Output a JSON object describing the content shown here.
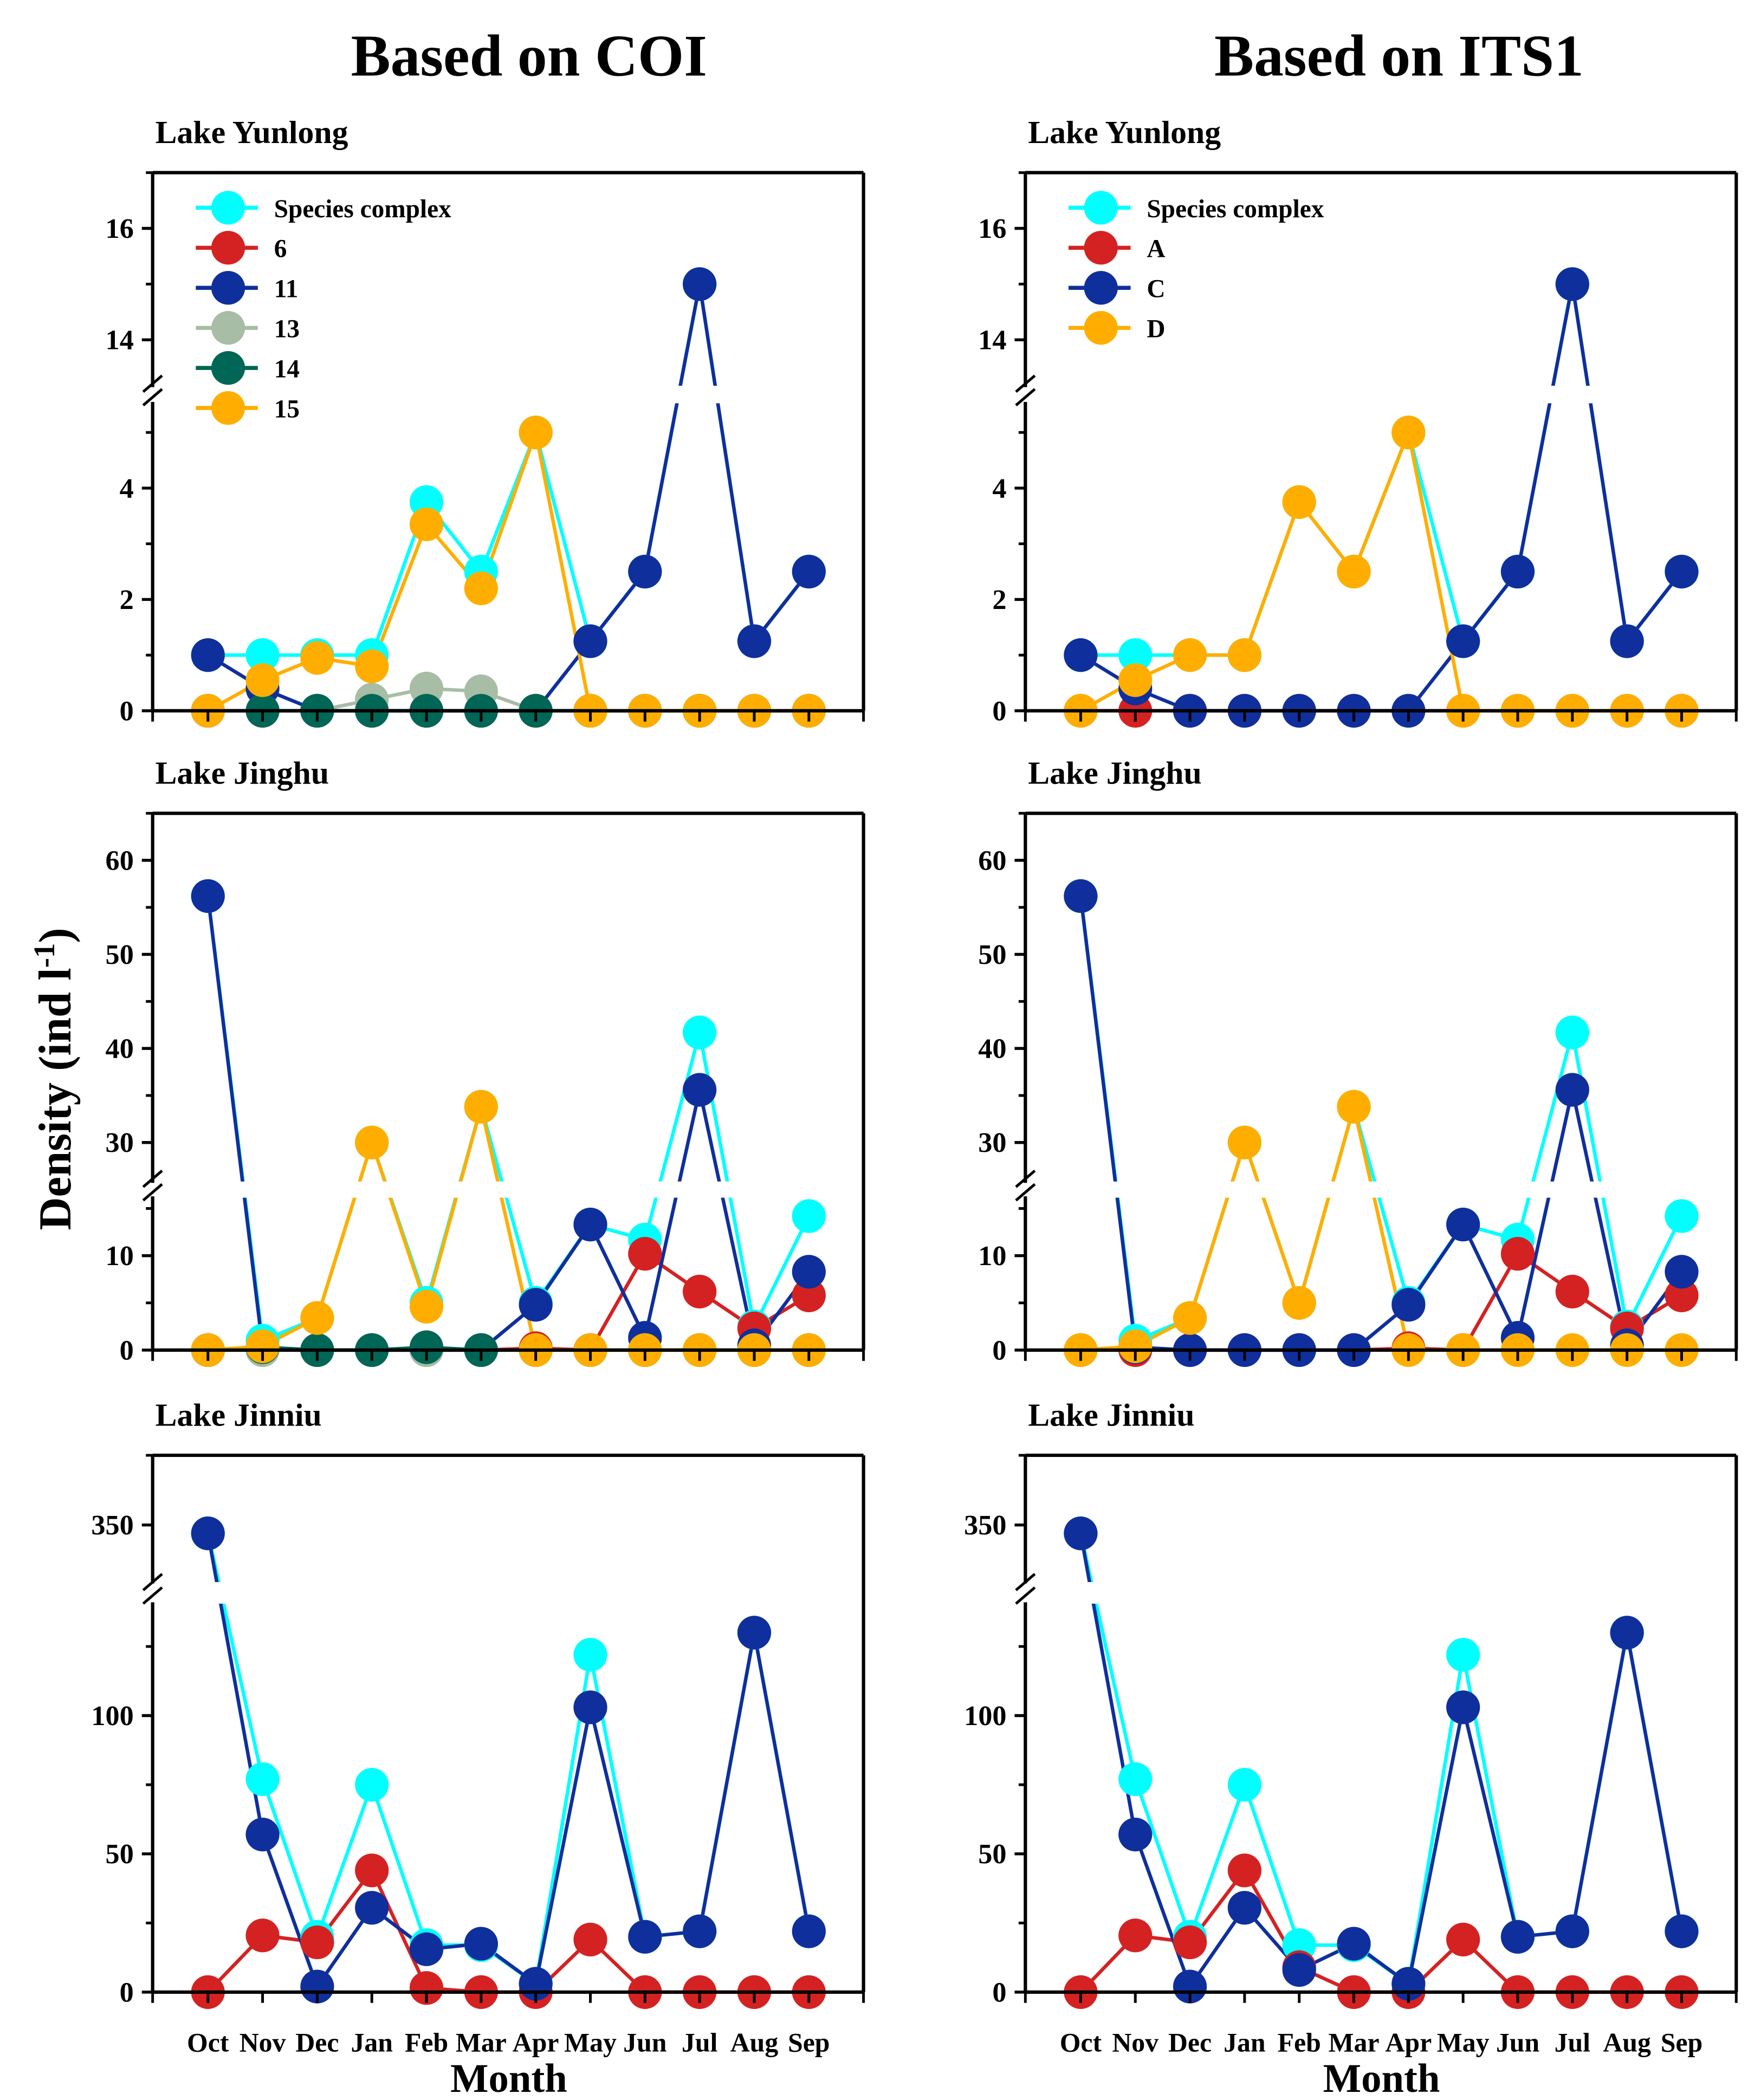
{
  "chart_data": {
    "type": "line",
    "categories": [
      "Oct",
      "Nov",
      "Dec",
      "Jan",
      "Feb",
      "Mar",
      "Apr",
      "May",
      "Jun",
      "Jul",
      "Aug",
      "Sep"
    ],
    "xlabel": "Month",
    "ylabel": "Density (ind l",
    "ylabel_sup": "-1",
    "ylabel_close": ")",
    "columns": [
      {
        "title": "Based on COI",
        "legend": [
          "Species complex",
          "6",
          "11",
          "13",
          "14",
          "15"
        ]
      },
      {
        "title": "Based on ITS1",
        "legend": [
          "Species complex",
          "A",
          "C",
          "D"
        ]
      }
    ],
    "colors": {
      "cyan": "#00FFFF",
      "red": "#D42222",
      "blue": "#0F2F9C",
      "sage": "#A7BDA5",
      "teal": "#006655",
      "orange": "#FFAE00"
    },
    "rows": [
      {
        "lake": "Lake Yunlong",
        "ylim_lower": [
          0,
          5.5
        ],
        "ylim_upper": [
          13.2,
          17
        ],
        "yticks": [
          0,
          2,
          4,
          14,
          16
        ],
        "minor": [
          1,
          3,
          5,
          15,
          17
        ]
      },
      {
        "lake": "Lake Jinghu",
        "ylim_lower": [
          0,
          16
        ],
        "ylim_upper": [
          26,
          65
        ],
        "yticks": [
          0,
          10,
          30,
          40,
          50,
          60
        ],
        "minor": [
          5,
          15,
          35,
          45,
          55,
          65
        ]
      },
      {
        "lake": "Lake Jinniu",
        "ylim_lower": [
          0,
          140
        ],
        "ylim_upper": [
          330,
          375
        ],
        "yticks": [
          0,
          50,
          100,
          350
        ],
        "minor": [
          25,
          75,
          125,
          375
        ]
      }
    ],
    "panels": [
      {
        "col": 0,
        "row": 0,
        "series": [
          {
            "name": "Species complex",
            "color": "cyan",
            "values": [
              1,
              1,
              1,
              1,
              3.75,
              2.5,
              5,
              1.25,
              2.5,
              15,
              1.25,
              2.5
            ]
          },
          {
            "name": "6",
            "color": "red",
            "values": [
              0,
              0,
              0,
              0,
              0,
              0,
              0,
              0,
              0,
              0,
              0,
              0
            ]
          },
          {
            "name": "11",
            "color": "blue",
            "values": [
              1,
              0.4,
              0,
              0,
              0,
              0,
              0,
              1.25,
              2.5,
              15,
              1.25,
              2.5
            ]
          },
          {
            "name": "13",
            "color": "sage",
            "values": [
              0,
              0,
              0,
              0.2,
              0.4,
              0.35,
              0,
              0,
              0,
              0,
              0,
              0
            ]
          },
          {
            "name": "14",
            "color": "teal",
            "values": [
              0,
              0,
              0,
              0,
              0,
              0,
              0,
              0,
              0,
              0,
              0,
              0
            ]
          },
          {
            "name": "15",
            "color": "orange",
            "values": [
              0,
              0.55,
              0.95,
              0.8,
              3.35,
              2.2,
              5,
              0,
              0,
              0,
              0,
              0
            ]
          }
        ]
      },
      {
        "col": 1,
        "row": 0,
        "series": [
          {
            "name": "Species complex",
            "color": "cyan",
            "values": [
              1,
              1,
              1,
              1,
              3.75,
              2.5,
              5,
              1.25,
              2.5,
              15,
              1.25,
              2.5
            ]
          },
          {
            "name": "A",
            "color": "red",
            "values": [
              0,
              0,
              0,
              0,
              0,
              0,
              0,
              0,
              0,
              0,
              0,
              0
            ]
          },
          {
            "name": "C",
            "color": "blue",
            "values": [
              1,
              0.4,
              0,
              0,
              0,
              0,
              0,
              1.25,
              2.5,
              15,
              1.25,
              2.5
            ]
          },
          {
            "name": "D",
            "color": "orange",
            "values": [
              0,
              0.55,
              1,
              1,
              3.75,
              2.5,
              5,
              0,
              0,
              0,
              0,
              0
            ]
          }
        ]
      },
      {
        "col": 0,
        "row": 1,
        "series": [
          {
            "name": "Species complex",
            "color": "cyan",
            "values": [
              56.2,
              1,
              3.4,
              30,
              5,
              33.8,
              5,
              13.3,
              11.7,
              41.7,
              2.5,
              14.2
            ]
          },
          {
            "name": "6",
            "color": "red",
            "values": [
              0,
              0,
              0,
              0,
              0,
              0,
              0.2,
              0,
              10.2,
              6.2,
              2.3,
              5.8
            ]
          },
          {
            "name": "11",
            "color": "blue",
            "values": [
              56.2,
              0.3,
              0,
              0,
              0,
              0,
              4.8,
              13.3,
              1.3,
              35.6,
              0.5,
              8.3
            ]
          },
          {
            "name": "13",
            "color": "sage",
            "values": [
              0,
              0,
              0,
              0,
              0,
              0,
              0,
              0,
              0,
              0,
              0,
              0
            ]
          },
          {
            "name": "14",
            "color": "teal",
            "values": [
              0,
              0.3,
              0,
              0,
              0.3,
              0,
              0,
              0,
              0,
              0,
              0,
              0
            ]
          },
          {
            "name": "15",
            "color": "orange",
            "values": [
              0,
              0.4,
              3.4,
              30,
              4.6,
              33.8,
              0,
              0,
              0,
              0,
              0,
              0
            ]
          }
        ]
      },
      {
        "col": 1,
        "row": 1,
        "series": [
          {
            "name": "Species complex",
            "color": "cyan",
            "values": [
              56.2,
              1,
              3.4,
              30,
              5,
              33.8,
              5,
              13.3,
              11.7,
              41.7,
              2.5,
              14.2
            ]
          },
          {
            "name": "A",
            "color": "red",
            "values": [
              0,
              0,
              0,
              0,
              0,
              0,
              0.2,
              0,
              10.2,
              6.2,
              2.3,
              5.8
            ]
          },
          {
            "name": "C",
            "color": "blue",
            "values": [
              56.2,
              0.3,
              0,
              0,
              0,
              0,
              4.8,
              13.3,
              1.3,
              35.6,
              0.5,
              8.3
            ]
          },
          {
            "name": "D",
            "color": "orange",
            "values": [
              0,
              0.4,
              3.4,
              30,
              5,
              33.8,
              0,
              0,
              0,
              0,
              0,
              0
            ]
          }
        ]
      },
      {
        "col": 0,
        "row": 2,
        "series": [
          {
            "name": "Species complex",
            "color": "cyan",
            "values": [
              347,
              77,
              20,
              75,
              17,
              17,
              3,
              122,
              20,
              22,
              130,
              22
            ]
          },
          {
            "name": "6",
            "color": "red",
            "values": [
              0,
              20.5,
              18,
              44,
              1.5,
              0,
              0,
              19,
              0,
              0,
              0,
              0
            ]
          },
          {
            "name": "11",
            "color": "blue",
            "values": [
              347,
              57,
              2,
              30.5,
              15.5,
              17.5,
              3,
              103,
              20,
              22,
              130,
              22
            ]
          }
        ]
      },
      {
        "col": 1,
        "row": 2,
        "series": [
          {
            "name": "Species complex",
            "color": "cyan",
            "values": [
              347,
              77,
              20,
              75,
              17,
              17,
              3,
              122,
              20,
              22,
              130,
              22
            ]
          },
          {
            "name": "A",
            "color": "red",
            "values": [
              0,
              20.5,
              18,
              44,
              9,
              0,
              0,
              19,
              0,
              0,
              0,
              0
            ]
          },
          {
            "name": "C",
            "color": "blue",
            "values": [
              347,
              57,
              2,
              30.5,
              8,
              17.5,
              3,
              103,
              20,
              22,
              130,
              22
            ]
          }
        ]
      }
    ]
  }
}
